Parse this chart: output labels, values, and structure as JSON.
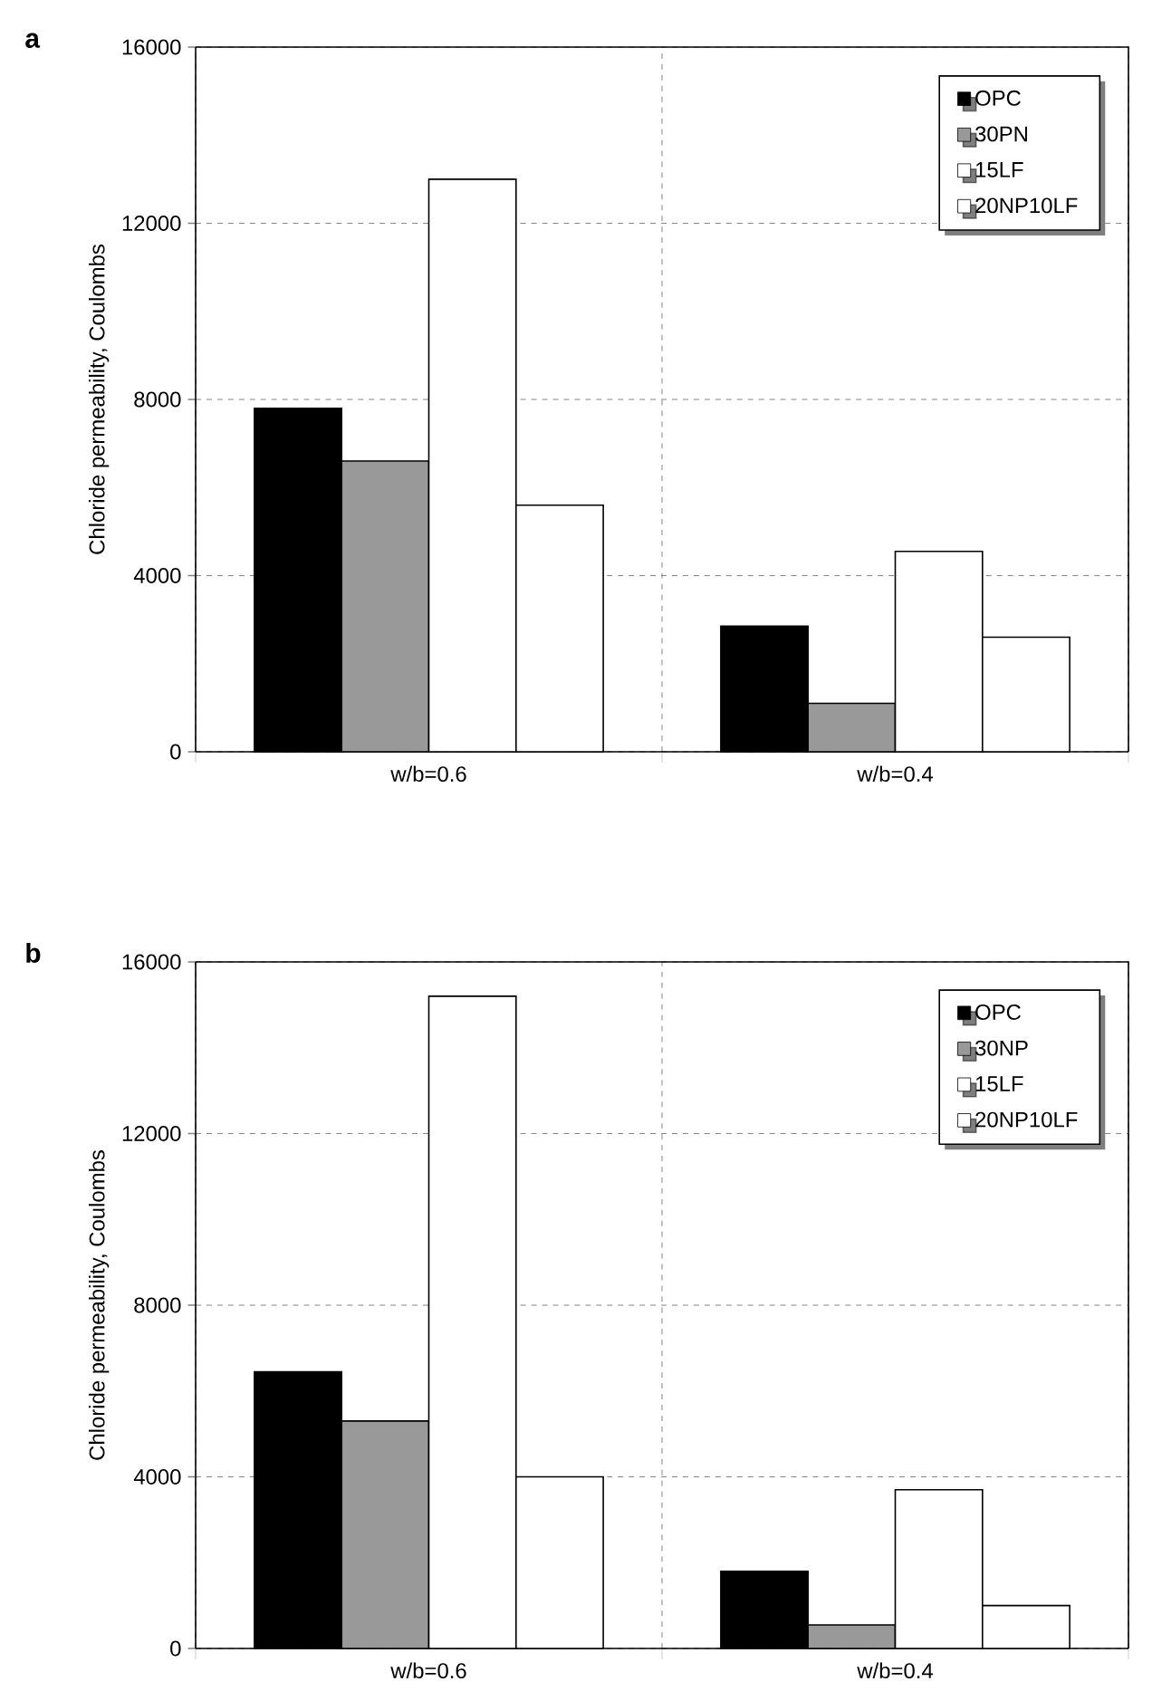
{
  "chart_data": [
    {
      "type": "bar",
      "title": "a",
      "ylabel": "Chloride permeability, Coulombs",
      "categories": [
        "w/b=0.6",
        "w/b=0.4"
      ],
      "series": [
        {
          "name": "OPC",
          "color": "#000000",
          "values": [
            7800,
            2850
          ]
        },
        {
          "name": "30PN",
          "color": "#999999",
          "values": [
            6600,
            1100
          ]
        },
        {
          "name": "15LF",
          "color": "#000000",
          "values": [
            13000,
            4550
          ]
        },
        {
          "name": "20NP10LF",
          "color": "#000000",
          "values": [
            5600,
            2600
          ]
        }
      ],
      "ylim": [
        0,
        16000
      ],
      "yticks": [
        0,
        4000,
        8000,
        12000,
        16000
      ],
      "grid": true,
      "legend": "top right"
    },
    {
      "type": "bar",
      "title": "b",
      "ylabel": "Chloride permeability, Coulombs",
      "categories": [
        "w/b=0.6",
        "w/b=0.4"
      ],
      "series": [
        {
          "name": "OPC",
          "color": "#000000",
          "values": [
            6450,
            1800
          ]
        },
        {
          "name": "30NP",
          "color": "#999999",
          "values": [
            5300,
            550
          ]
        },
        {
          "name": "15LF",
          "color": "#000000",
          "values": [
            15200,
            3700
          ]
        },
        {
          "name": "20NP10LF",
          "color": "#000000",
          "values": [
            4000,
            1000
          ]
        }
      ],
      "ylim": [
        0,
        16000
      ],
      "yticks": [
        0,
        4000,
        8000,
        12000,
        16000
      ],
      "grid": true,
      "legend": "top right"
    }
  ]
}
